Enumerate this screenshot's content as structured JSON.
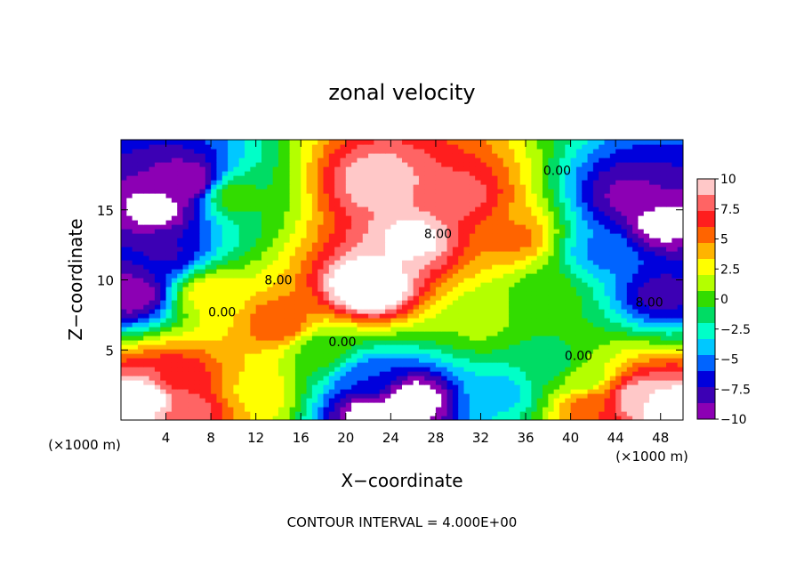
{
  "chart_data": {
    "type": "heatmap",
    "title": "zonal velocity",
    "xlabel": "X−coordinate",
    "ylabel": "Z−coordinate",
    "x_unit_left": "(×1000 m)",
    "x_unit_right": "(×1000 m)",
    "footer": "CONTOUR INTERVAL = 4.000E+00",
    "xlim": [
      0,
      50
    ],
    "ylim": [
      0,
      20
    ],
    "x_ticks": [
      4,
      8,
      12,
      16,
      20,
      24,
      28,
      32,
      36,
      40,
      44,
      48
    ],
    "y_ticks": [
      5,
      10,
      15
    ],
    "colorbar": {
      "range": [
        -10,
        10
      ],
      "ticks": [
        "10",
        "7.5",
        "5",
        "2.5",
        "0",
        "−2.5",
        "−5",
        "−7.5",
        "−10"
      ],
      "colors": [
        "#ffc8c8",
        "#ff6464",
        "#ff1e1e",
        "#ff6400",
        "#ffb400",
        "#ffff00",
        "#b4ff00",
        "#32dc00",
        "#00dc64",
        "#00ffc8",
        "#00c8ff",
        "#0064ff",
        "#0000dc",
        "#3c00b4",
        "#8c00b4"
      ]
    },
    "contour_labels": [
      {
        "text": "0.00",
        "x": 38.8,
        "y": 17.8
      },
      {
        "text": "8.00",
        "x": 28.2,
        "y": 13.3
      },
      {
        "text": "8.00",
        "x": 14.0,
        "y": 10.0
      },
      {
        "text": "0.00",
        "x": 9.0,
        "y": 7.7
      },
      {
        "text": "0.00",
        "x": 19.7,
        "y": 5.6
      },
      {
        "text": "0.00",
        "x": 40.7,
        "y": 4.6
      },
      {
        "text": "8.00",
        "x": 47.0,
        "y": 8.4
      }
    ],
    "features": [
      {
        "x": 6,
        "z": 17,
        "u": -10
      },
      {
        "x": 4,
        "z": 12,
        "u": -7.5
      },
      {
        "x": 1,
        "z": 9,
        "u": -10
      },
      {
        "x": 3,
        "z": 15,
        "u": -11
      },
      {
        "x": 10,
        "z": 16,
        "u": 0
      },
      {
        "x": 8,
        "z": 9,
        "u": 3
      },
      {
        "x": 22,
        "z": 9.5,
        "u": 14
      },
      {
        "x": 26,
        "z": 13,
        "u": 11
      },
      {
        "x": 23,
        "z": 17,
        "u": 10
      },
      {
        "x": 30,
        "z": 16,
        "u": 8
      },
      {
        "x": 14,
        "z": 7,
        "u": 6
      },
      {
        "x": 35,
        "z": 13,
        "u": 5
      },
      {
        "x": 38,
        "z": 9,
        "u": 0
      },
      {
        "x": 43,
        "z": 12,
        "u": -5
      },
      {
        "x": 45,
        "z": 16,
        "u": -9
      },
      {
        "x": 48,
        "z": 14,
        "u": -11
      },
      {
        "x": 48,
        "z": 9,
        "u": -8
      },
      {
        "x": 32,
        "z": 7,
        "u": 1
      },
      {
        "x": 18,
        "z": 5,
        "u": 0
      },
      {
        "x": 22,
        "z": 3,
        "u": -6
      },
      {
        "x": 26,
        "z": 1.5,
        "u": -12
      },
      {
        "x": 22,
        "z": 0.5,
        "u": -11
      },
      {
        "x": 5,
        "z": 3,
        "u": 7
      },
      {
        "x": 2,
        "z": 1.5,
        "u": 12
      },
      {
        "x": 6,
        "z": 0.5,
        "u": 8
      },
      {
        "x": 12,
        "z": 2,
        "u": 3
      },
      {
        "x": 34,
        "z": 2,
        "u": -4
      },
      {
        "x": 38,
        "z": 4,
        "u": -2
      },
      {
        "x": 42,
        "z": 1,
        "u": 6
      },
      {
        "x": 46,
        "z": 1.5,
        "u": 10
      },
      {
        "x": 49,
        "z": 0.8,
        "u": 12
      },
      {
        "x": 41,
        "z": 3,
        "u": 1
      }
    ]
  }
}
